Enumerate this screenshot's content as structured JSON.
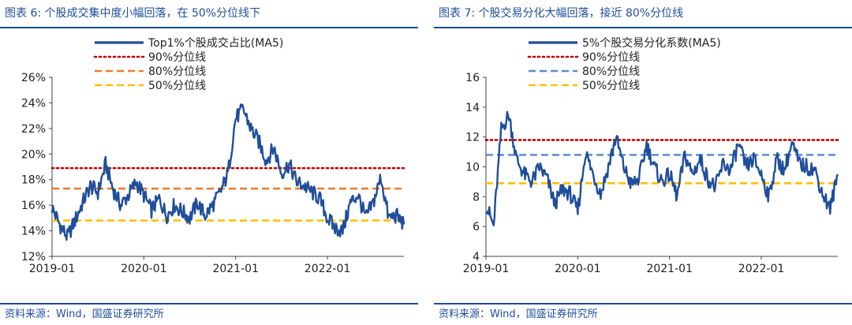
{
  "panels": [
    {
      "title": "图表 6:  个股成交集中度小幅回落，在 50%分位线下",
      "source": "资料来源：Wind，国盛证券研究所"
    },
    {
      "title": "图表 7:  个股交易分化大幅回落，接近 80%分位线",
      "source": "资料来源：Wind，国盛证券研究所"
    }
  ],
  "chart_data": [
    {
      "type": "line",
      "x_ticks": [
        "2019-01",
        "2020-01",
        "2021-01",
        "2022-01"
      ],
      "y_ticks": [
        "26%",
        "24%",
        "22%",
        "20%",
        "18%",
        "16%",
        "14%",
        "12%"
      ],
      "ylim": [
        12,
        26
      ],
      "x_range": [
        "2019-01",
        "2022-11"
      ],
      "legend_position": "top-center",
      "grid": false,
      "series": [
        {
          "name": "Top1%个股成交占比(MA5)",
          "style": "solid",
          "color": "#1f4e9a",
          "x": [
            "2019-01",
            "2019-02",
            "2019-03",
            "2019-04",
            "2019-05",
            "2019-06",
            "2019-07",
            "2019-08",
            "2019-09",
            "2019-10",
            "2019-11",
            "2019-12",
            "2020-01",
            "2020-02",
            "2020-03",
            "2020-04",
            "2020-05",
            "2020-06",
            "2020-07",
            "2020-08",
            "2020-09",
            "2020-10",
            "2020-11",
            "2020-12",
            "2021-01",
            "2021-02",
            "2021-03",
            "2021-04",
            "2021-05",
            "2021-06",
            "2021-07",
            "2021-08",
            "2021-09",
            "2021-10",
            "2021-11",
            "2021-12",
            "2022-01",
            "2022-02",
            "2022-03",
            "2022-04",
            "2022-05",
            "2022-06",
            "2022-07",
            "2022-08",
            "2022-09",
            "2022-10",
            "2022-11"
          ],
          "values": [
            15.8,
            14.5,
            13.5,
            14.8,
            16.2,
            17.5,
            17.0,
            19.2,
            17.2,
            16.0,
            16.8,
            17.8,
            16.8,
            15.6,
            16.5,
            15.2,
            16.0,
            15.5,
            15.0,
            16.2,
            15.2,
            16.0,
            17.0,
            18.5,
            22.8,
            23.5,
            22.0,
            21.0,
            19.5,
            20.5,
            18.5,
            19.2,
            17.8,
            17.5,
            17.0,
            16.5,
            15.0,
            14.2,
            14.0,
            16.2,
            16.8,
            15.0,
            16.2,
            18.2,
            15.0,
            15.2,
            14.5
          ]
        },
        {
          "name": "90%分位线",
          "style": "dotted",
          "color": "#c00000",
          "value": 18.9
        },
        {
          "name": "80%分位线",
          "style": "dashed",
          "color": "#ed7d31",
          "value": 17.3
        },
        {
          "name": "50%分位线",
          "style": "dashed",
          "color": "#ffc000",
          "value": 14.8
        }
      ]
    },
    {
      "type": "line",
      "x_ticks": [
        "2019-01",
        "2020-01",
        "2021-01",
        "2022-01"
      ],
      "y_ticks": [
        "16",
        "14",
        "12",
        "10",
        "8",
        "6",
        "4"
      ],
      "ylim": [
        4,
        16
      ],
      "x_range": [
        "2019-01",
        "2022-11"
      ],
      "legend_position": "top-center",
      "grid": false,
      "series": [
        {
          "name": "5%个股交易分化系数(MA5)",
          "style": "solid",
          "color": "#1f4e9a",
          "x": [
            "2019-01",
            "2019-02",
            "2019-03",
            "2019-04",
            "2019-05",
            "2019-06",
            "2019-07",
            "2019-08",
            "2019-09",
            "2019-10",
            "2019-11",
            "2019-12",
            "2020-01",
            "2020-02",
            "2020-03",
            "2020-04",
            "2020-05",
            "2020-06",
            "2020-07",
            "2020-08",
            "2020-09",
            "2020-10",
            "2020-11",
            "2020-12",
            "2021-01",
            "2021-02",
            "2021-03",
            "2021-04",
            "2021-05",
            "2021-06",
            "2021-07",
            "2021-08",
            "2021-09",
            "2021-10",
            "2021-11",
            "2021-12",
            "2022-01",
            "2022-02",
            "2022-03",
            "2022-04",
            "2022-05",
            "2022-06",
            "2022-07",
            "2022-08",
            "2022-09",
            "2022-10",
            "2022-11"
          ],
          "values": [
            7.5,
            6.0,
            12.5,
            13.5,
            10.5,
            9.5,
            9.0,
            10.0,
            9.2,
            7.5,
            8.5,
            8.2,
            7.0,
            11.0,
            9.5,
            8.2,
            10.0,
            12.0,
            10.0,
            8.8,
            9.2,
            11.5,
            10.0,
            9.0,
            9.5,
            8.0,
            10.8,
            9.5,
            10.5,
            9.2,
            8.6,
            10.2,
            9.8,
            11.5,
            10.0,
            10.5,
            9.5,
            8.0,
            10.5,
            9.8,
            11.5,
            10.2,
            10.0,
            9.8,
            8.2,
            7.2,
            9.5
          ]
        },
        {
          "name": "90%分位线",
          "style": "dotted",
          "color": "#c00000",
          "value": 11.8
        },
        {
          "name": "80%分位线",
          "style": "dashed",
          "color": "#5b8ccc",
          "value": 10.8
        },
        {
          "name": "50%分位线",
          "style": "dashed",
          "color": "#ffc000",
          "value": 8.9
        }
      ]
    }
  ]
}
